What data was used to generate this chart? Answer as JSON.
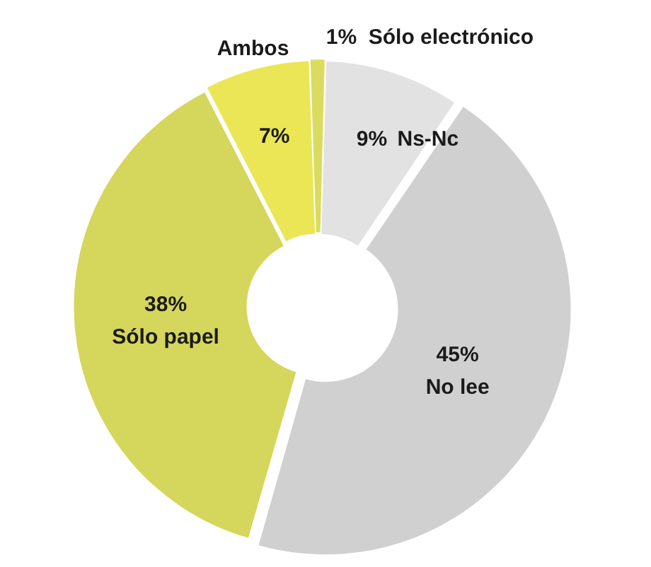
{
  "chart_data": {
    "type": "donut",
    "categories": [
      "Sólo electrónico",
      "Ns-Nc",
      "No lee",
      "Sólo papel",
      "Ambos"
    ],
    "values": [
      1,
      9,
      45,
      38,
      7
    ],
    "value_labels": [
      "1%",
      "9%",
      "45%",
      "38%",
      "7%"
    ],
    "colors": [
      "#d9dc5e",
      "#e2e2e2",
      "#cfd0cf",
      "#d5d65c",
      "#ebe655"
    ],
    "legend": false
  }
}
